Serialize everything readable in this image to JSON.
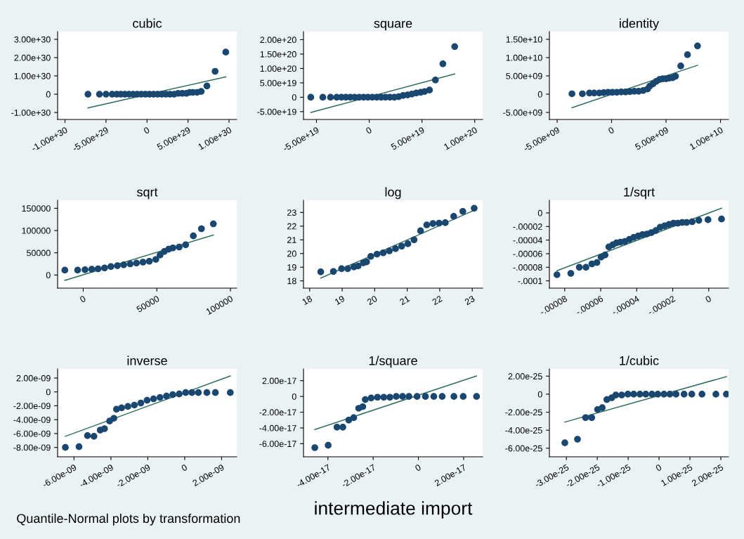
{
  "chart_data": [
    {
      "type": "scatter",
      "title": "cubic",
      "xlim": [
        -1.09e+30,
        1.094e+30
      ],
      "ylim": [
        -1.38e+30,
        3.42e+30
      ],
      "xticks": [
        {
          "value": -1e+30,
          "label": "-1.00e+30"
        },
        {
          "value": -5e+29,
          "label": "-5.00e+29"
        },
        0,
        {
          "value": 5e+29,
          "label": "5.00e+29"
        },
        {
          "value": 1e+30,
          "label": "1.00e+30"
        }
      ],
      "yticks": [
        {
          "value": -1e+30,
          "label": "-1.00e+30"
        },
        0,
        {
          "value": 1e+30,
          "label": "1.00e+30"
        },
        {
          "value": 2e+30,
          "label": "2.00e+30"
        },
        {
          "value": 3e+30,
          "label": "3.00e+30"
        }
      ],
      "series": [
        {
          "marker": "circle",
          "color": "#1a476f",
          "x": [
            -7.2e+29,
            -5.8e+29,
            -5e+29,
            -4.25e+29,
            -3.7e+29,
            -3.2e+29,
            -2.7e+29,
            -2.2e+29,
            -1.7e+29,
            -1.2e+29,
            -7e+28,
            -2e+28,
            3e+28,
            8e+28,
            1.3e+29,
            1.8e+29,
            2.3e+29,
            2.8e+29,
            3.3e+29,
            3.8e+29,
            4.3e+29,
            4.8e+29,
            5.2e+29,
            5.6e+29,
            6.1e+29,
            6.6e+29,
            7.3e+29,
            8.3e+29,
            9.6e+29
          ],
          "values": [
            0,
            0,
            0,
            0,
            0,
            0,
            0,
            0,
            0,
            0,
            0,
            0,
            0,
            0,
            0,
            0,
            0,
            0,
            0,
            5e+28,
            5e+28,
            5e+28,
            1e+29,
            1e+29,
            1e+29,
            1.5e+29,
            4.5e+29,
            1.25e+30,
            2.3e+30
          ]
        },
        {
          "type": "line",
          "color": "#2e6e62",
          "x": [
            -7.2e+29,
            9.6e+29
          ],
          "values": [
            -7.5e+29,
            9.5e+29
          ]
        }
      ]
    },
    {
      "type": "scatter",
      "title": "square",
      "xlim": [
        -6.23e+19,
        1.075e+20
      ],
      "ylim": [
        -7.72e+19,
        2.28e+20
      ],
      "xticks": [
        {
          "value": -5e+19,
          "label": "-5.00e+19"
        },
        0,
        {
          "value": 5e+19,
          "label": "5.00e+19"
        },
        {
          "value": 1e+20,
          "label": "1.00e+20"
        }
      ],
      "yticks": [
        {
          "value": -5e+19,
          "label": "-5.00e+19"
        },
        0,
        {
          "value": 5e+19,
          "label": "5.00e+19"
        },
        {
          "value": 1e+20,
          "label": "1.00e+20"
        },
        {
          "value": 1.5e+20,
          "label": "1.50e+20"
        },
        {
          "value": 2e+20,
          "label": "2.00e+20"
        }
      ],
      "series": [
        {
          "marker": "circle",
          "color": "#1a476f",
          "x": [
            -5.54e+19,
            -4.4e+19,
            -3.67e+19,
            -3.08e+19,
            -2.63e+19,
            -2.21e+19,
            -1.79e+19,
            -1.38e+19,
            -9.6e+18,
            -5.4e+18,
            -1.3e+18,
            2.9e+18,
            7.1e+18,
            1.13e+19,
            1.54e+19,
            1.96e+19,
            2.38e+19,
            2.79e+19,
            3.21e+19,
            3.63e+19,
            4.04e+19,
            4.46e+19,
            4.88e+19,
            5.25e+19,
            5.71e+19,
            6.27e+19,
            6.98e+19,
            8.1e+19
          ],
          "values": [
            0,
            0,
            0,
            0,
            0,
            0,
            0,
            0,
            0,
            0,
            0,
            0,
            0,
            0,
            0,
            0,
            0,
            2e+18,
            6e+18,
            8e+18,
            1.1e+19,
            1.5e+19,
            1.7e+19,
            2e+19,
            2.5e+19,
            6e+19,
            1.16e+20,
            1.76e+20
          ]
        },
        {
          "type": "line",
          "color": "#2e6e62",
          "x": [
            -5.54e+19,
            8.1e+19
          ],
          "values": [
            -5.3e+19,
            8.1e+19
          ]
        }
      ]
    },
    {
      "type": "scatter",
      "title": "identity",
      "xlim": [
        -5710000000.0,
        10740000000.0
      ],
      "ylim": [
        -6920000000.0,
        17100000000.0
      ],
      "xticks": [
        {
          "value": -5000000000.0,
          "label": "-5.00e+09"
        },
        0,
        {
          "value": 5000000000.0,
          "label": "5.00e+09"
        },
        {
          "value": 10000000000.0,
          "label": "1.00e+10"
        }
      ],
      "yticks": [
        {
          "value": -5000000000.0,
          "label": "-5.00e+09"
        },
        0,
        {
          "value": 5000000000.0,
          "label": "5.00e+09"
        },
        {
          "value": 10000000000.0,
          "label": "1.00e+10"
        },
        {
          "value": 15000000000.0,
          "label": "1.50e+10"
        }
      ],
      "series": [
        {
          "marker": "circle",
          "color": "#1a476f",
          "x": [
            -3640000000.0,
            -2680000000.0,
            -2030000000.0,
            -1600000000.0,
            -1130000000.0,
            -720000000.0,
            -320000000.0,
            80000000.0,
            480000000.0,
            890000000.0,
            1290000000.0,
            1690000000.0,
            2090000000.0,
            2490000000.0,
            2900000000.0,
            3300000000.0,
            3500000000.0,
            3800000000.0,
            4100000000.0,
            4400000000.0,
            4700000000.0,
            5000000000.0,
            5300000000.0,
            5600000000.0,
            5870000000.0,
            6350000000.0,
            6970000000.0,
            7890000000.0
          ],
          "values": [
            100000000.0,
            100000000.0,
            300000000.0,
            300000000.0,
            300000000.0,
            400000000.0,
            500000000.0,
            500000000.0,
            500000000.0,
            600000000.0,
            600000000.0,
            700000000.0,
            800000000.0,
            800000000.0,
            1000000000.0,
            1400000000.0,
            2200000000.0,
            2800000000.0,
            3500000000.0,
            4000000000.0,
            4200000000.0,
            4200000000.0,
            4400000000.0,
            4500000000.0,
            4900000000.0,
            7700000000.0,
            10800000000.0,
            13200000000.0
          ]
        },
        {
          "type": "line",
          "color": "#2e6e62",
          "x": [
            -3640000000.0,
            7890000000.0
          ],
          "values": [
            -3700000000.0,
            7900000000.0
          ]
        }
      ]
    },
    {
      "type": "scatter",
      "title": "sqrt",
      "xlim": [
        -17400,
        104300
      ],
      "ylim": [
        -29400,
        168000
      ],
      "xticks": [
        0,
        50000,
        100000
      ],
      "yticks": [
        0,
        50000,
        100000,
        150000
      ],
      "series": [
        {
          "marker": "circle",
          "color": "#1a476f",
          "x": [
            -12500,
            -3800,
            1200,
            5800,
            10100,
            14500,
            18800,
            23200,
            27500,
            31900,
            36200,
            40600,
            44900,
            49300,
            52200,
            55100,
            58000,
            60900,
            65200,
            69600,
            74800,
            80300,
            88400
          ],
          "values": [
            11000,
            11000,
            12000,
            13000,
            14000,
            16000,
            19000,
            21000,
            23000,
            25000,
            27000,
            29000,
            31000,
            35000,
            45000,
            53000,
            58000,
            61000,
            63000,
            68000,
            88000,
            104000,
            115000
          ]
        },
        {
          "type": "line",
          "color": "#2e6e62",
          "x": [
            -12500,
            88400
          ],
          "values": [
            -12000,
            90000
          ]
        }
      ]
    },
    {
      "type": "scatter",
      "title": "log",
      "xlim": [
        17.81,
        23.32
      ],
      "ylim": [
        17.47,
        23.89
      ],
      "xticks": [
        18,
        19,
        20,
        21,
        22,
        23
      ],
      "yticks": [
        18,
        19,
        20,
        21,
        22,
        23
      ],
      "series": [
        {
          "marker": "circle",
          "color": "#1a476f",
          "x": [
            18.34,
            18.73,
            18.98,
            19.17,
            19.36,
            19.49,
            19.65,
            19.75,
            19.88,
            20.07,
            20.26,
            20.45,
            20.64,
            20.83,
            21.02,
            21.21,
            21.41,
            21.6,
            21.79,
            21.98,
            22.17,
            22.43,
            22.71,
            23.06
          ],
          "values": [
            18.66,
            18.69,
            18.89,
            18.89,
            19.02,
            19.09,
            19.32,
            19.39,
            19.79,
            19.95,
            20.05,
            20.19,
            20.35,
            20.54,
            20.71,
            21.0,
            21.66,
            22.09,
            22.19,
            22.22,
            22.25,
            22.72,
            23.08,
            23.31
          ]
        },
        {
          "type": "line",
          "color": "#2e6e62",
          "x": [
            18.34,
            23.06
          ],
          "values": [
            18.2,
            23.16
          ]
        }
      ]
    },
    {
      "type": "scatter",
      "title": "1/sqrt",
      "xlim": [
        -8.85e-05,
        1.1e-05
      ],
      "ylim": [
        -0.0001107,
        1.86e-05
      ],
      "xticks": [
        {
          "value": -8e-05,
          "label": "-.00008"
        },
        {
          "value": -6e-05,
          "label": "-.00006"
        },
        {
          "value": -4e-05,
          "label": "-.00004"
        },
        {
          "value": -2e-05,
          "label": "-.00002"
        },
        0
      ],
      "yticks": [
        {
          "value": -0.0001,
          "label": "-.0001"
        },
        {
          "value": -8e-05,
          "label": "-.00008"
        },
        {
          "value": -6e-05,
          "label": "-.00006"
        },
        {
          "value": -4e-05,
          "label": "-.00004"
        },
        {
          "value": -2e-05,
          "label": "-.00002"
        },
        0
      ],
      "series": [
        {
          "marker": "circle",
          "color": "#1a476f",
          "x": [
            -8.43e-05,
            -7.66e-05,
            -7.19e-05,
            -6.82e-05,
            -6.49e-05,
            -6.21e-05,
            -5.98e-05,
            -5.76e-05,
            -5.55e-05,
            -5.33e-05,
            -5.12e-05,
            -4.9e-05,
            -4.66e-05,
            -4.41e-05,
            -4.17e-05,
            -3.92e-05,
            -3.68e-05,
            -3.43e-05,
            -3.19e-05,
            -2.94e-05,
            -2.7e-05,
            -2.45e-05,
            -2.21e-05,
            -1.96e-05,
            -1.72e-05,
            -1.47e-05,
            -1.23e-05,
            -9.2e-06,
            -5.5e-06,
            -4e-07,
            7.1e-06
          ],
          "values": [
            -9.1e-05,
            -8.9e-05,
            -8e-05,
            -8e-05,
            -7.5e-05,
            -7.3e-05,
            -6.5e-05,
            -6.2e-05,
            -5e-05,
            -4.7e-05,
            -4.4e-05,
            -4.3e-05,
            -4.2e-05,
            -3.9e-05,
            -3.6e-05,
            -3.4e-05,
            -3.2e-05,
            -3.1e-05,
            -2.9e-05,
            -2.6e-05,
            -2.1e-05,
            -1.9e-05,
            -1.7e-05,
            -1.5e-05,
            -1.5e-05,
            -1.4e-05,
            -1.4e-05,
            -1.3e-05,
            -1.1e-05,
            -1e-05,
            -9e-06
          ]
        },
        {
          "type": "line",
          "color": "#2e6e62",
          "x": [
            -8.43e-05,
            7.1e-06
          ],
          "values": [
            -8.5e-05,
            7e-06
          ]
        }
      ]
    },
    {
      "type": "scatter",
      "title": "inverse",
      "xlim": [
        -6.89e-09,
        2.82e-09
      ],
      "ylim": [
        -9.35e-09,
        3.31e-09
      ],
      "annotations": [
        "Quantile-Normal plots by transformation"
      ],
      "xticks": [
        {
          "value": -6e-09,
          "label": "-6.00e-09"
        },
        {
          "value": -4e-09,
          "label": "-4.00e-09"
        },
        {
          "value": -2e-09,
          "label": "-2.00e-09"
        },
        0,
        {
          "value": 2e-09,
          "label": "2.00e-09"
        }
      ],
      "yticks": [
        {
          "value": -8e-09,
          "label": "-8.00e-09"
        },
        {
          "value": -6e-09,
          "label": "-6.00e-09"
        },
        {
          "value": -4e-09,
          "label": "-4.00e-09"
        },
        {
          "value": -2e-09,
          "label": "-2.00e-09"
        },
        0,
        {
          "value": 2e-09,
          "label": "2.00e-09"
        }
      ],
      "series": [
        {
          "marker": "circle",
          "color": "#1a476f",
          "x": [
            -6.47e-09,
            -5.73e-09,
            -5.27e-09,
            -4.92e-09,
            -4.58e-09,
            -4.35e-09,
            -4.07e-09,
            -3.84e-09,
            -3.7e-09,
            -3.42e-09,
            -3.08e-09,
            -2.73e-09,
            -2.38e-09,
            -2.04e-09,
            -1.69e-09,
            -1.34e-09,
            -9.9e-10,
            -6.5e-10,
            -3e-10,
            5e-11,
            3.9e-10,
            7.4e-10,
            1.2e-09,
            1.66e-09,
            2.47e-09
          ],
          "values": [
            -8e-09,
            -7.9e-09,
            -6.3e-09,
            -6.4e-09,
            -5.5e-09,
            -5.3e-09,
            -4.2e-09,
            -3.8e-09,
            -2.5e-09,
            -2.3e-09,
            -2.1e-09,
            -1.9e-09,
            -1.6e-09,
            -1.2e-09,
            -1e-09,
            -8e-10,
            -6e-10,
            -4e-10,
            -3e-10,
            -1e-10,
            -1e-10,
            -1e-10,
            -1e-10,
            -1e-10,
            -1e-10
          ]
        },
        {
          "type": "line",
          "color": "#2e6e62",
          "x": [
            -6.47e-09,
            2.47e-09
          ],
          "values": [
            -6.4e-09,
            2.3e-09
          ]
        }
      ]
    },
    {
      "type": "scatter",
      "title": "1/square",
      "xlabel": "intermediate import",
      "xlim": [
        -5.08e-17,
        2.84e-17
      ],
      "ylim": [
        -7.66e-17,
        3.49e-17
      ],
      "xticks": [
        {
          "value": -4e-17,
          "label": "-4.00e-17"
        },
        {
          "value": -2e-17,
          "label": "-2.00e-17"
        },
        0,
        {
          "value": 2e-17,
          "label": "2.00e-17"
        }
      ],
      "yticks": [
        {
          "value": -6e-17,
          "label": "-6.00e-17"
        },
        {
          "value": -4e-17,
          "label": "-4.00e-17"
        },
        {
          "value": -2e-17,
          "label": "-2.00e-17"
        },
        0,
        {
          "value": 2e-17,
          "label": "2.00e-17"
        }
      ],
      "series": [
        {
          "marker": "circle",
          "color": "#1a476f",
          "x": [
            -4.58e-17,
            -3.99e-17,
            -3.6e-17,
            -3.34e-17,
            -3.08e-17,
            -2.86e-17,
            -2.64e-17,
            -2.46e-17,
            -2.35e-17,
            -2.09e-17,
            -1.81e-17,
            -1.53e-17,
            -1.26e-17,
            -9.8e-18,
            -7e-18,
            -4.2e-18,
            -6e-19,
            3.1e-18,
            6.8e-18,
            1.05e-17,
            1.57e-17,
            1.98e-17,
            2.57e-17
          ],
          "values": [
            -6.5e-17,
            -6.2e-17,
            -3.9e-17,
            -3.9e-17,
            -3e-17,
            -2.7e-17,
            -1.5e-17,
            -1.3e-17,
            -4e-18,
            -2e-18,
            -1e-18,
            -1e-18,
            -1e-18,
            0,
            0,
            0,
            0,
            0,
            0,
            0,
            0,
            0,
            0
          ]
        },
        {
          "type": "line",
          "color": "#2e6e62",
          "x": [
            -4.58e-17,
            2.57e-17
          ],
          "values": [
            -4.2e-17,
            2.6e-17
          ]
        }
      ]
    },
    {
      "type": "scatter",
      "title": "1/cubic",
      "xlim": [
        -3.55e-25,
        2.25e-25
      ],
      "ylim": [
        -6.95e-25,
        2.8e-25
      ],
      "xticks": [
        {
          "value": -3e-25,
          "label": "-3.00e-25"
        },
        {
          "value": -2e-25,
          "label": "-2.00e-25"
        },
        {
          "value": -1e-25,
          "label": "-1.00e-25"
        },
        0,
        {
          "value": 1e-25,
          "label": "1.00e-25"
        },
        {
          "value": 2e-25,
          "label": "2.00e-25"
        }
      ],
      "yticks": [
        {
          "value": -6e-25,
          "label": "-6.00e-25"
        },
        {
          "value": -4e-25,
          "label": "-4.00e-25"
        },
        {
          "value": -2e-25,
          "label": "-2.00e-25"
        },
        0,
        {
          "value": 2e-25,
          "label": "2.00e-25"
        }
      ],
      "series": [
        {
          "marker": "circle",
          "color": "#1a476f",
          "x": [
            -3.05e-25,
            -2.64e-25,
            -2.38e-25,
            -2.18e-25,
            -1.99e-25,
            -1.84e-25,
            -1.69e-25,
            -1.53e-25,
            -1.4e-25,
            -1.21e-25,
            -1.01e-25,
            -8.2e-26,
            -6.2e-26,
            -4.3e-26,
            -2.3e-26,
            -4e-27,
            1.6e-26,
            3.5e-26,
            5.5e-26,
            8.1e-26,
            1.06e-25,
            1.39e-25,
            1.84e-25,
            2.18e-25
          ],
          "values": [
            -5.4e-25,
            -5e-25,
            -2.6e-25,
            -2.6e-25,
            -1.7e-25,
            -1.5e-25,
            -6e-26,
            -4e-26,
            -1e-26,
            -1e-26,
            0,
            0,
            0,
            0,
            0,
            0,
            0,
            0,
            0,
            0,
            0,
            0,
            0,
            0
          ]
        },
        {
          "type": "line",
          "color": "#2e6e62",
          "x": [
            -3.05e-25,
            2.18e-25
          ],
          "values": [
            -3.1e-25,
            1.95e-25
          ]
        }
      ]
    }
  ]
}
